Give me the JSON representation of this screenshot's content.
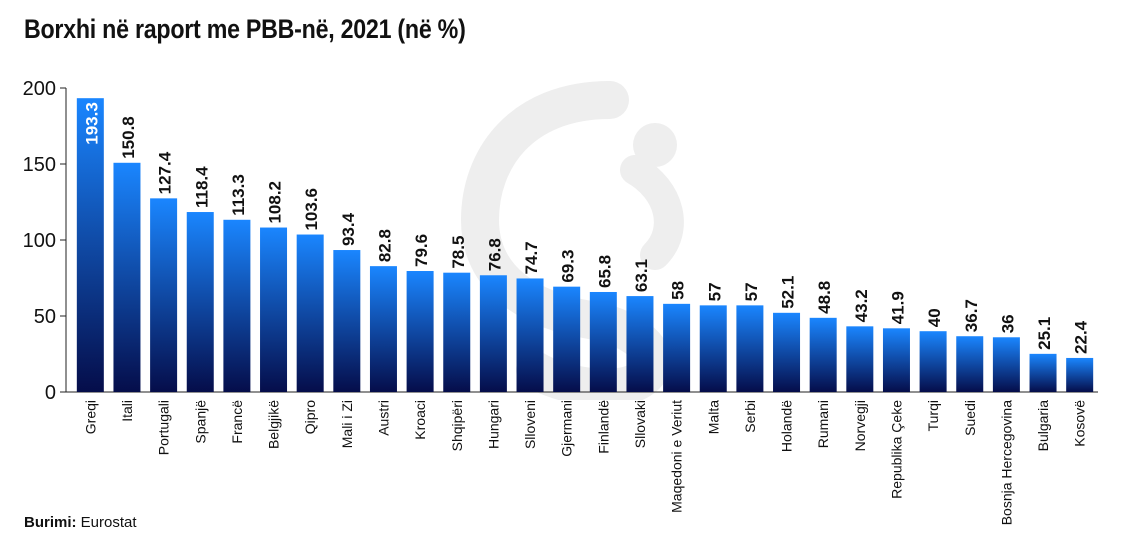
{
  "title": "Borxhi në raport me PBB-në, 2021 (në %)",
  "source": {
    "label": "Burimi:",
    "value": "Eurostat"
  },
  "colors": {
    "bar_top": "#1a86ff",
    "bar_bottom": "#050d4a",
    "axis": "#222222",
    "text": "#111111",
    "watermark": "#eeeeee"
  },
  "chart_data": {
    "type": "bar",
    "title": "Borxhi në raport me PBB-në, 2021 (në %)",
    "xlabel": "",
    "ylabel": "",
    "ylim": [
      0,
      200
    ],
    "yticks": [
      0,
      50,
      100,
      150,
      200
    ],
    "grid": false,
    "categories": [
      "Greqi",
      "Itali",
      "Portugali",
      "Spanjë",
      "Francë",
      "Belgjikë",
      "Qipro",
      "Mali i Zi",
      "Austri",
      "Kroaci",
      "Shqipëri",
      "Hungari",
      "Slloveni",
      "Gjermani",
      "Finlandë",
      "Sllovaki",
      "Maqedoni e Veriut",
      "Malta",
      "Serbi",
      "Holandë",
      "Rumani",
      "Norvegji",
      "Republika Çeke",
      "Turqi",
      "Suedi",
      "Bosnja Hercegovina",
      "Bulgaria",
      "Kosovë"
    ],
    "values": [
      193.3,
      150.8,
      127.4,
      118.4,
      113.3,
      108.2,
      103.6,
      93.4,
      82.8,
      79.6,
      78.5,
      76.8,
      74.7,
      69.3,
      65.8,
      63.1,
      58,
      57,
      57,
      52.1,
      48.8,
      43.2,
      41.9,
      40,
      36.7,
      36,
      25.1,
      22.4
    ],
    "value_labels": [
      "193.3",
      "150.8",
      "127.4",
      "118.4",
      "113.3",
      "108.2",
      "103.6",
      "93.4",
      "82.8",
      "79.6",
      "78.5",
      "76.8",
      "74.7",
      "69.3",
      "65.8",
      "63.1",
      "58",
      "57",
      "57",
      "52.1",
      "48.8",
      "43.2",
      "41.9",
      "40",
      "36.7",
      "36",
      "25.1",
      "22.4"
    ]
  }
}
